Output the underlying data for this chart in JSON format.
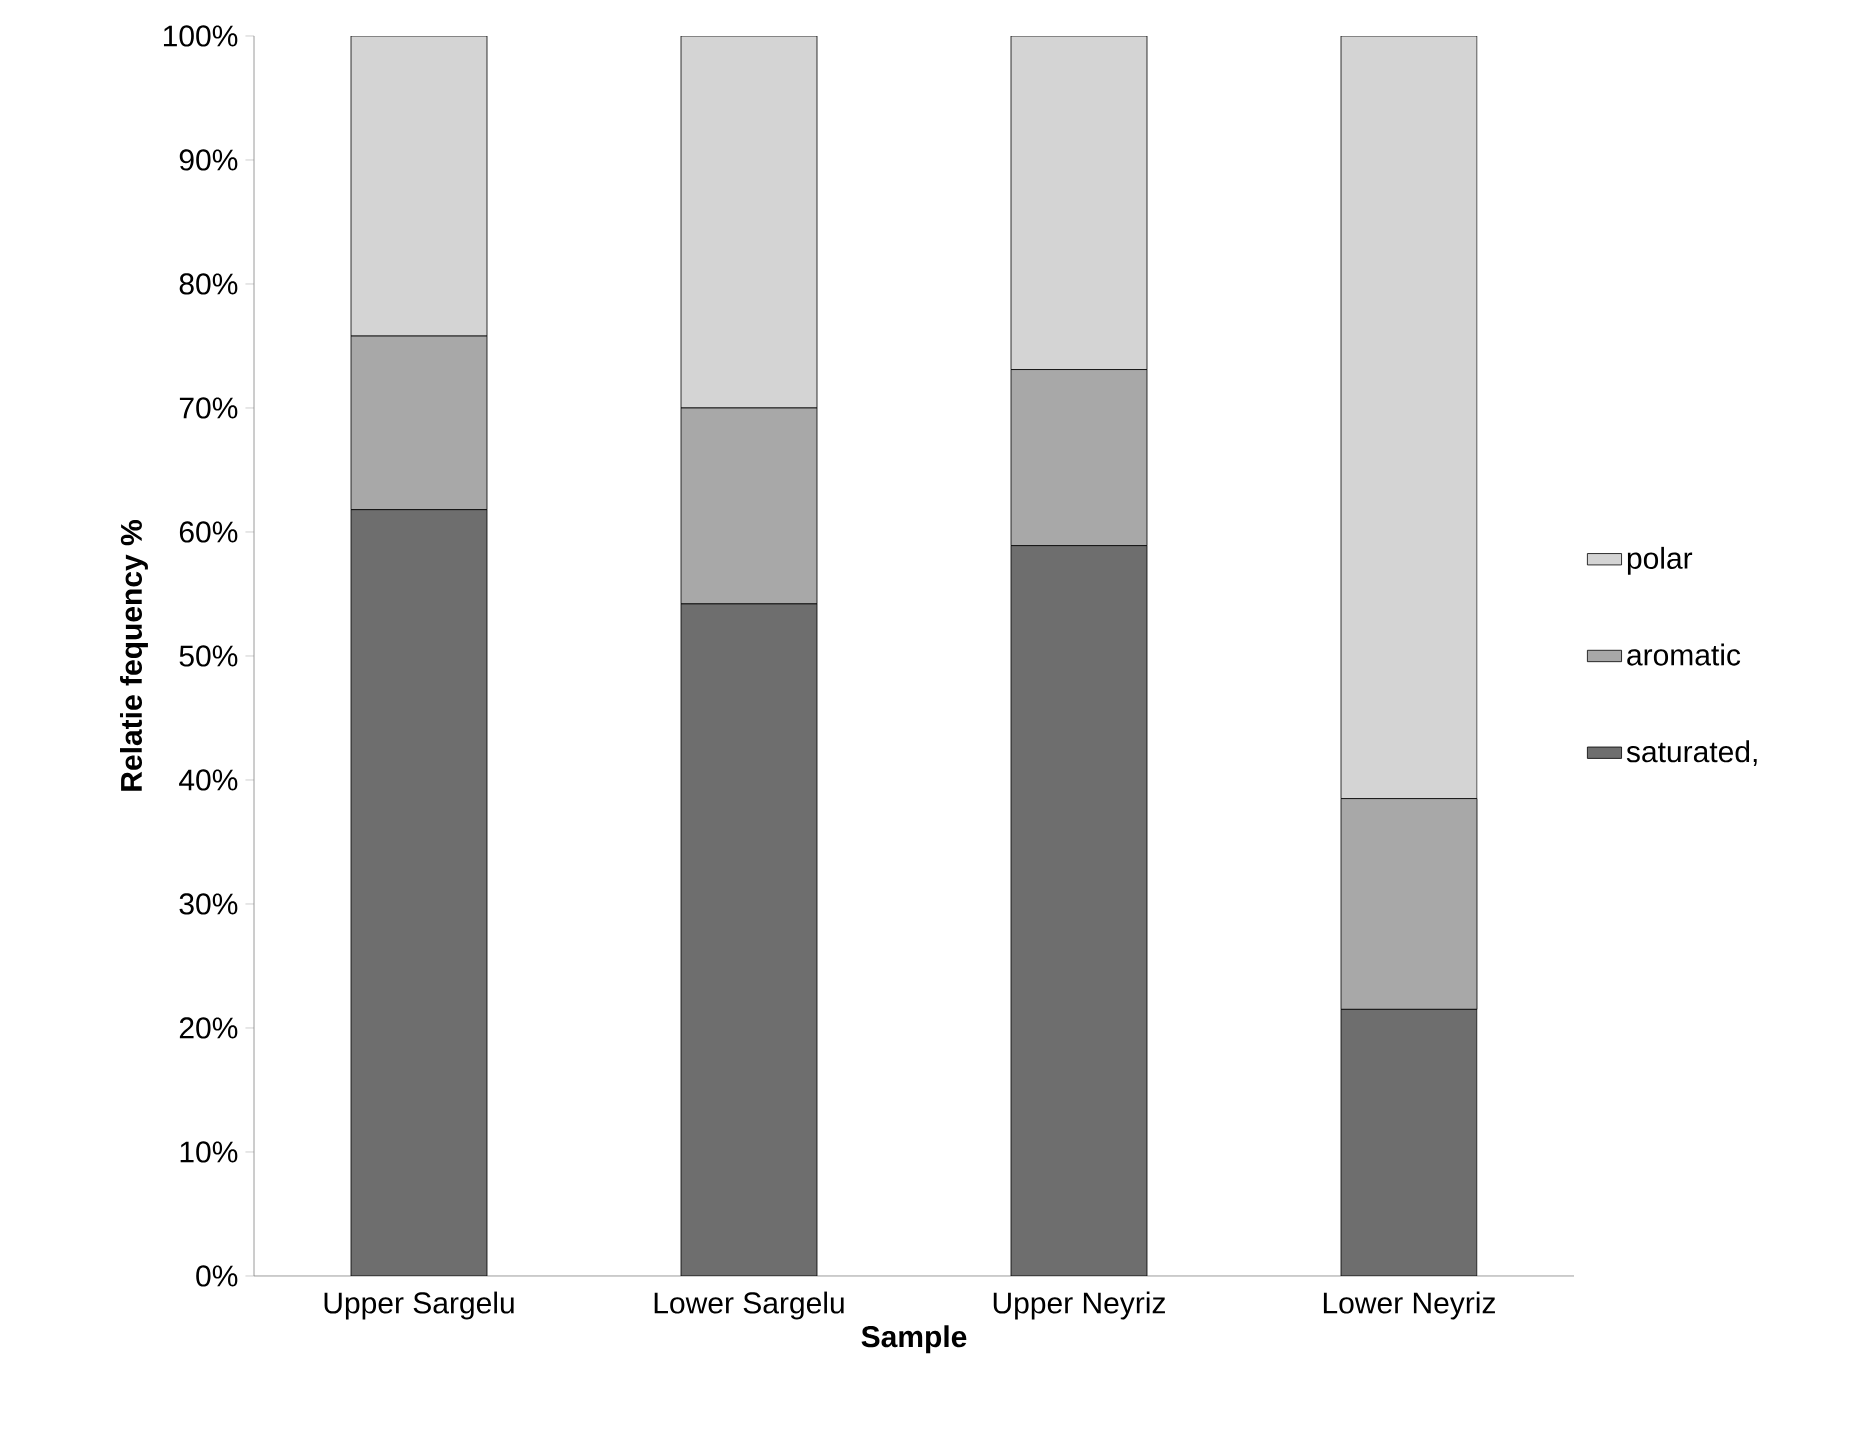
{
  "chart_data": {
    "type": "bar",
    "stacked": true,
    "xlabel": "Sample",
    "ylabel": "Relatie fequency %",
    "categories": [
      "Upper Sargelu",
      "Lower Sargelu",
      "Upper Neyriz",
      "Lower Neyriz"
    ],
    "series": [
      {
        "name": "saturated,",
        "color": "#6e6e6e",
        "values": [
          61.8,
          54.2,
          58.9,
          21.5
        ]
      },
      {
        "name": "aromatic",
        "color": "#a8a8a8",
        "values": [
          14.0,
          15.8,
          14.2,
          17.0
        ]
      },
      {
        "name": "polar",
        "color": "#d4d4d4",
        "values": [
          24.2,
          30.0,
          26.9,
          61.5
        ]
      }
    ],
    "ylim": [
      0,
      100
    ],
    "yticks": [
      {
        "value": 0,
        "label": "0%"
      },
      {
        "value": 10,
        "label": "10%"
      },
      {
        "value": 20,
        "label": "20%"
      },
      {
        "value": 30,
        "label": "30%"
      },
      {
        "value": 40,
        "label": "40%"
      },
      {
        "value": 50,
        "label": "50%"
      },
      {
        "value": 60,
        "label": "60%"
      },
      {
        "value": 70,
        "label": "70%"
      },
      {
        "value": 80,
        "label": "80%"
      },
      {
        "value": 90,
        "label": "90%"
      },
      {
        "value": 100,
        "label": "100%"
      }
    ],
    "legend": "right"
  }
}
